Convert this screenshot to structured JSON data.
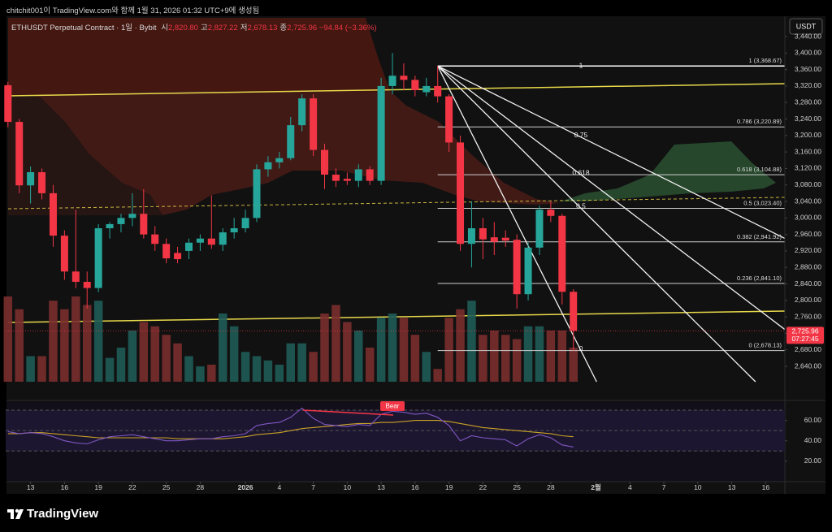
{
  "header": {
    "caption": "chitchit001이 TradingView.com와 함께 1월 31, 2026 01:32 UTC+9에 생성됨",
    "symbol": "ETHUSDT Perpetual Contract · 1일 · Bybit",
    "ohlc": [
      {
        "label": "시",
        "value": "2,820.80"
      },
      {
        "label": "고",
        "value": "2,827.22"
      },
      {
        "label": "저",
        "value": "2,678.13"
      },
      {
        "label": "종",
        "value": "2,725.96"
      }
    ],
    "change": "−94.84 (−3.36%)",
    "currency": "USDT"
  },
  "chart_data": {
    "type": "candlestick",
    "up_color": "#26a69a",
    "down_color": "#f23645",
    "candles": [
      {
        "open": 3322,
        "high": 3330,
        "low": 3220,
        "close": 3233
      },
      {
        "open": 3233,
        "high": 3240,
        "low": 3060,
        "close": 3079
      },
      {
        "open": 3079,
        "high": 3125,
        "low": 3035,
        "close": 3111
      },
      {
        "open": 3111,
        "high": 3120,
        "low": 3045,
        "close": 3060
      },
      {
        "open": 3060,
        "high": 3080,
        "low": 2930,
        "close": 2957
      },
      {
        "open": 2957,
        "high": 2970,
        "low": 2850,
        "close": 2870
      },
      {
        "open": 2870,
        "high": 3020,
        "low": 2830,
        "close": 2845
      },
      {
        "open": 2845,
        "high": 2870,
        "low": 2780,
        "close": 2830
      },
      {
        "open": 2830,
        "high": 2985,
        "low": 2820,
        "close": 2975
      },
      {
        "open": 2975,
        "high": 2990,
        "low": 2950,
        "close": 2985
      },
      {
        "open": 2985,
        "high": 3010,
        "low": 2965,
        "close": 3000
      },
      {
        "open": 3000,
        "high": 3060,
        "low": 2980,
        "close": 3010
      },
      {
        "open": 3010,
        "high": 3070,
        "low": 2950,
        "close": 2960
      },
      {
        "open": 2960,
        "high": 2980,
        "low": 2920,
        "close": 2937
      },
      {
        "open": 2937,
        "high": 2950,
        "low": 2890,
        "close": 2902
      },
      {
        "open": 2915,
        "high": 2930,
        "low": 2890,
        "close": 2900
      },
      {
        "open": 2920,
        "high": 2950,
        "low": 2900,
        "close": 2940
      },
      {
        "open": 2940,
        "high": 2960,
        "low": 2920,
        "close": 2950
      },
      {
        "open": 2950,
        "high": 3055,
        "low": 2925,
        "close": 2935
      },
      {
        "open": 2935,
        "high": 2975,
        "low": 2920,
        "close": 2965
      },
      {
        "open": 2965,
        "high": 3000,
        "low": 2950,
        "close": 2975
      },
      {
        "open": 2975,
        "high": 3020,
        "low": 2965,
        "close": 3000
      },
      {
        "open": 3000,
        "high": 3130,
        "low": 2990,
        "close": 3118
      },
      {
        "open": 3118,
        "high": 3150,
        "low": 3100,
        "close": 3135
      },
      {
        "open": 3135,
        "high": 3160,
        "low": 3120,
        "close": 3145
      },
      {
        "open": 3145,
        "high": 3245,
        "low": 3140,
        "close": 3225
      },
      {
        "open": 3225,
        "high": 3300,
        "low": 3210,
        "close": 3290
      },
      {
        "open": 3290,
        "high": 3300,
        "low": 3150,
        "close": 3165
      },
      {
        "open": 3165,
        "high": 3180,
        "low": 3070,
        "close": 3105
      },
      {
        "open": 3105,
        "high": 3120,
        "low": 3075,
        "close": 3090
      },
      {
        "open": 3095,
        "high": 3110,
        "low": 3080,
        "close": 3090
      },
      {
        "open": 3090,
        "high": 3130,
        "low": 3075,
        "close": 3118
      },
      {
        "open": 3118,
        "high": 3125,
        "low": 3080,
        "close": 3090
      },
      {
        "open": 3090,
        "high": 3340,
        "low": 3080,
        "close": 3320
      },
      {
        "open": 3320,
        "high": 3400,
        "low": 3300,
        "close": 3345
      },
      {
        "open": 3345,
        "high": 3375,
        "low": 3310,
        "close": 3335
      },
      {
        "open": 3335,
        "high": 3345,
        "low": 3295,
        "close": 3310
      },
      {
        "open": 3305,
        "high": 3340,
        "low": 3295,
        "close": 3320
      },
      {
        "open": 3320,
        "high": 3368.67,
        "low": 3280,
        "close": 3295
      },
      {
        "open": 3295,
        "high": 3300,
        "low": 3160,
        "close": 3183
      },
      {
        "open": 3183,
        "high": 3200,
        "low": 2920,
        "close": 2937
      },
      {
        "open": 2937,
        "high": 3040,
        "low": 2880,
        "close": 2975
      },
      {
        "open": 2975,
        "high": 3000,
        "low": 2900,
        "close": 2948
      },
      {
        "open": 2953,
        "high": 2990,
        "low": 2910,
        "close": 2942
      },
      {
        "open": 2952,
        "high": 2970,
        "low": 2930,
        "close": 2945
      },
      {
        "open": 2947,
        "high": 2960,
        "low": 2780,
        "close": 2815
      },
      {
        "open": 2815,
        "high": 2940,
        "low": 2800,
        "close": 2928
      },
      {
        "open": 2928,
        "high": 3030,
        "low": 2910,
        "close": 3020
      },
      {
        "open": 3020,
        "high": 3040,
        "low": 2990,
        "close": 3005
      },
      {
        "open": 3005,
        "high": 3010,
        "low": 2790,
        "close": 2820.8
      },
      {
        "open": 2820.8,
        "high": 2827.22,
        "low": 2678.13,
        "close": 2725.96
      }
    ],
    "volume": [
      100,
      85,
      30,
      30,
      95,
      85,
      100,
      90,
      95,
      28,
      40,
      60,
      70,
      65,
      55,
      45,
      30,
      18,
      20,
      80,
      65,
      35,
      30,
      25,
      20,
      45,
      45,
      35,
      80,
      90,
      70,
      60,
      40,
      75,
      80,
      75,
      55,
      35,
      15,
      75,
      85,
      95,
      55,
      60,
      55,
      50,
      65,
      65,
      60,
      60,
      40
    ],
    "last_price": {
      "value": 2725.96,
      "label": "2,725.96",
      "countdown": "07:27:45"
    },
    "xlim": [
      -0.2,
      68.7
    ],
    "xticks": [
      {
        "value": 2,
        "label": "13"
      },
      {
        "value": 5,
        "label": "16"
      },
      {
        "value": 8,
        "label": "19"
      },
      {
        "value": 11,
        "label": "22"
      },
      {
        "value": 14,
        "label": "25"
      },
      {
        "value": 17,
        "label": "28"
      },
      {
        "value": 21,
        "label": "2026"
      },
      {
        "value": 24,
        "label": "4"
      },
      {
        "value": 27,
        "label": "7"
      },
      {
        "value": 30,
        "label": "10"
      },
      {
        "value": 33,
        "label": "13"
      },
      {
        "value": 36,
        "label": "16"
      },
      {
        "value": 39,
        "label": "19"
      },
      {
        "value": 42,
        "label": "22"
      },
      {
        "value": 45,
        "label": "25"
      },
      {
        "value": 48,
        "label": "28"
      },
      {
        "value": 52,
        "label": "2월"
      },
      {
        "value": 55,
        "label": "4"
      },
      {
        "value": 58,
        "label": "7"
      },
      {
        "value": 61,
        "label": "10"
      },
      {
        "value": 64,
        "label": "13"
      },
      {
        "value": 67,
        "label": "16"
      }
    ],
    "ylim": [
      2602.6,
      3489.3
    ],
    "yticks": [
      {
        "value": 3440,
        "label": "3,440.00"
      },
      {
        "value": 3400,
        "label": "3,400.00"
      },
      {
        "value": 3360,
        "label": "3,360.00"
      },
      {
        "value": 3320,
        "label": "3,320.00"
      },
      {
        "value": 3280,
        "label": "3,280.00"
      },
      {
        "value": 3240,
        "label": "3,240.00"
      },
      {
        "value": 3200,
        "label": "3,200.00"
      },
      {
        "value": 3160,
        "label": "3,160.00"
      },
      {
        "value": 3120,
        "label": "3,120.00"
      },
      {
        "value": 3080,
        "label": "3,080.00"
      },
      {
        "value": 3040,
        "label": "3,040.00"
      },
      {
        "value": 3000,
        "label": "3,000.00"
      },
      {
        "value": 2960,
        "label": "2,960.00"
      },
      {
        "value": 2920,
        "label": "2,920.00"
      },
      {
        "value": 2880,
        "label": "2,880.00"
      },
      {
        "value": 2840,
        "label": "2,840.00"
      },
      {
        "value": 2800,
        "label": "2,800.00"
      },
      {
        "value": 2760,
        "label": "2,760.00"
      },
      {
        "value": 2720,
        "label": "2,720.00"
      },
      {
        "value": 2680,
        "label": "2,680.00"
      },
      {
        "value": 2640,
        "label": "2,640.00"
      }
    ],
    "fib": {
      "levels": [
        {
          "ratio": 1,
          "price": 3368.67,
          "label": "1 (3,368.67)"
        },
        {
          "ratio": 0.786,
          "price": 3220.89,
          "label": "0.786 (3,220.89)"
        },
        {
          "ratio": 0.618,
          "price": 3104.88,
          "label": "0.618 (3,104.88)"
        },
        {
          "ratio": 0.5,
          "price": 3023.4,
          "label": "0.5 (3,023.40)"
        },
        {
          "ratio": 0.382,
          "price": 2941.92,
          "label": "0.382 (2,941.92)"
        },
        {
          "ratio": 0.236,
          "price": 2841.1,
          "label": "0.236 (2,841.10)"
        },
        {
          "ratio": 0,
          "price": 2678.13,
          "label": "0 (2,678.13)"
        }
      ],
      "fan": [
        1,
        0.75,
        0.618,
        0.5,
        0
      ]
    },
    "rsi": {
      "values": [
        49,
        47,
        48,
        47,
        44,
        40,
        38,
        37,
        41,
        44,
        45,
        46,
        44,
        42,
        40,
        40,
        41,
        42,
        42,
        44,
        45,
        47,
        55,
        57,
        58,
        63,
        72,
        62,
        56,
        55,
        54,
        56,
        55,
        66,
        69,
        68,
        66,
        67,
        63,
        55,
        40,
        45,
        43,
        42,
        41,
        35,
        42,
        46,
        43,
        36,
        34
      ],
      "ma": [
        47,
        47,
        48,
        48,
        47,
        46,
        45,
        44,
        43,
        43,
        43,
        43,
        43,
        43,
        43,
        42,
        42,
        42,
        42,
        42,
        43,
        44,
        46,
        47,
        48,
        50,
        52,
        53,
        54,
        55,
        56,
        57,
        57,
        58,
        58,
        59,
        60,
        60,
        60,
        59,
        57,
        55,
        53,
        52,
        51,
        50,
        49,
        48,
        47,
        45,
        44
      ],
      "color": "#7e57c2",
      "ma_color": "#c9a227",
      "ylim": [
        0,
        78
      ],
      "yticks": [
        {
          "value": 60,
          "label": "60.00"
        },
        {
          "value": 40,
          "label": "40.00"
        },
        {
          "value": 20,
          "label": "20.00"
        }
      ],
      "bands": [
        70,
        50,
        30
      ],
      "annotation": "Bear"
    }
  },
  "brand": "TradingView"
}
